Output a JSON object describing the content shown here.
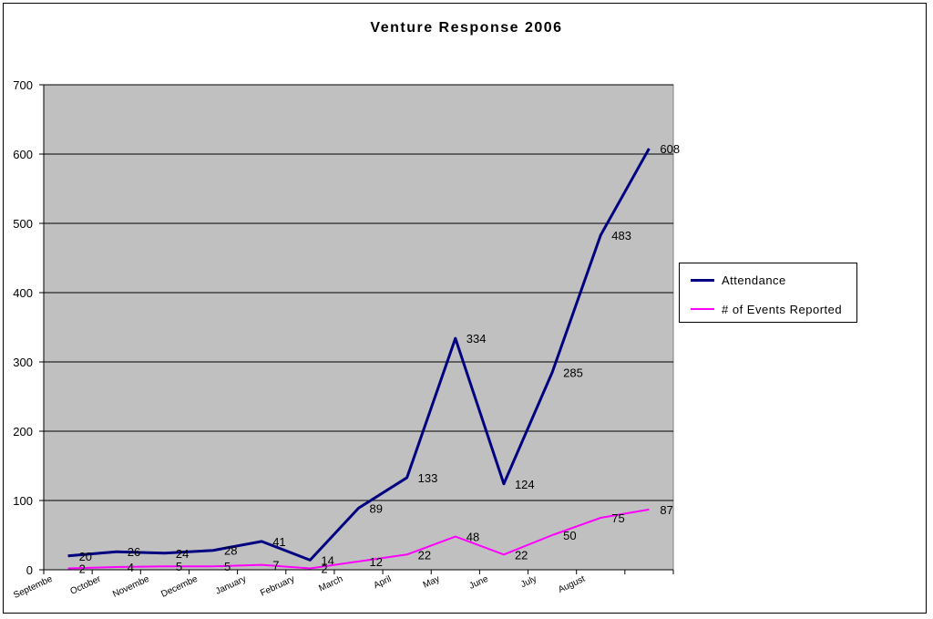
{
  "chart_data": {
    "type": "line",
    "title": "Venture Response 2006",
    "categories": [
      "September",
      "October",
      "November",
      "December",
      "January",
      "February",
      "March",
      "April",
      "May",
      "June",
      "July",
      "August",
      ""
    ],
    "category_labels_shown": [
      "Septembe",
      "October",
      "Novembe",
      "Decembe",
      "January",
      "February",
      "March",
      "April",
      "May",
      "June",
      "July",
      "August"
    ],
    "ylim": [
      0,
      700
    ],
    "yticks": [
      0,
      100,
      200,
      300,
      400,
      500,
      600,
      700
    ],
    "grid": true,
    "legend_position": "right",
    "plot_background": "#c0c0c0",
    "series": [
      {
        "name": "Attendance",
        "color": "#000080",
        "values": [
          20,
          26,
          24,
          28,
          41,
          14,
          89,
          133,
          334,
          124,
          285,
          483,
          608
        ]
      },
      {
        "name": "# of Events Reported",
        "color": "#ff00ff",
        "values": [
          2,
          4,
          5,
          5,
          7,
          2,
          12,
          22,
          48,
          22,
          50,
          75,
          87
        ]
      }
    ]
  }
}
